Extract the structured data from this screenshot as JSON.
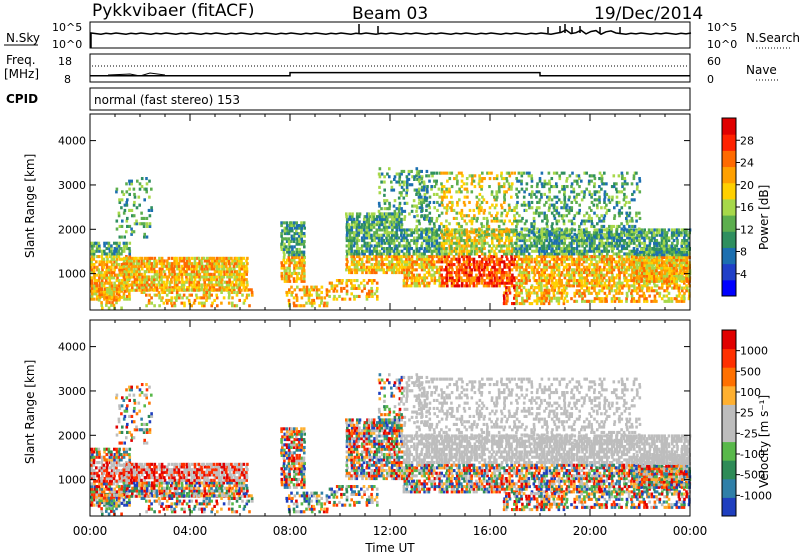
{
  "header": {
    "station": "Pykkvibaer (fitACF)",
    "beam": "Beam 03",
    "date": "19/Dec/2014"
  },
  "sky_panel": {
    "left_label": "N.Sky",
    "right_label": "N.Search",
    "left_ticks": [
      "10^5",
      "10^0"
    ],
    "right_ticks": [
      "10^5",
      "10^0"
    ]
  },
  "freq_panel": {
    "left_label_1": "Freq.",
    "left_label_2": "[MHz]",
    "right_label": "Nave",
    "left_ticks": [
      "18",
      "8"
    ],
    "right_ticks": [
      "60",
      "0"
    ],
    "freq_steps": [
      [
        0,
        8.6
      ],
      [
        8.0,
        10.4
      ],
      [
        18.0,
        8.6
      ],
      [
        24,
        8.6
      ]
    ]
  },
  "cpid": {
    "label": "CPID",
    "mode": "normal (fast stereo) 153"
  },
  "chart_data": [
    {
      "type": "heatmap",
      "name": "power",
      "ylabel": "Slant Range [km]",
      "y_ticks": [
        "4000",
        "3000",
        "2000",
        "1000"
      ],
      "x_ticks": [
        "00:00",
        "04:00",
        "08:00",
        "12:00",
        "16:00",
        "20:00",
        "00:00"
      ],
      "xlim_hours": [
        0,
        24
      ],
      "ylim_km": [
        180,
        4600
      ],
      "colorbar": {
        "label": "Power [dB]",
        "ticks": [
          "28",
          "24",
          "20",
          "16",
          "12",
          "8",
          "4"
        ],
        "colors": [
          "#0000ff",
          "#2040c8",
          "#1c6fb0",
          "#2f8f5f",
          "#5cae4e",
          "#a7d84a",
          "#ffd000",
          "#ffa000",
          "#ff6a00",
          "#ff2200",
          "#e00000"
        ]
      }
    },
    {
      "type": "heatmap",
      "name": "velocity",
      "ylabel": "Slant Range [km]",
      "y_ticks": [
        "4000",
        "3000",
        "2000",
        "1000"
      ],
      "x_ticks": [
        "00:00",
        "04:00",
        "08:00",
        "12:00",
        "16:00",
        "20:00",
        "00:00"
      ],
      "xlim_hours": [
        0,
        24
      ],
      "ylim_km": [
        180,
        4600
      ],
      "xlabel": "Time UT",
      "colorbar": {
        "label": "Velocity [m s⁻¹]",
        "ticks": [
          "1000",
          "500",
          "100",
          "25",
          "-25",
          "-100",
          "-500",
          "-1000"
        ],
        "colors": [
          "#1f3fbf",
          "#2f7fa8",
          "#2e8b57",
          "#58b84a",
          "#bdbdbd",
          "#bdbdbd",
          "#ffb030",
          "#ff7000",
          "#ff3000",
          "#e00000"
        ]
      }
    }
  ]
}
